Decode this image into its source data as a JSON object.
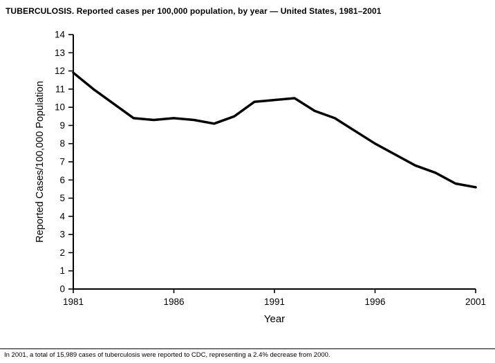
{
  "title": "TUBERCULOSIS. Reported cases per 100,000 population, by year — United States, 1981–2001",
  "footnote": "In 2001, a total of 15,989 cases of tuberculosis were reported to CDC, representing a 2.4% decrease from 2000.",
  "chart_data": {
    "type": "line",
    "title": "TUBERCULOSIS. Reported cases per 100,000 population, by year — United States, 1981–2001",
    "x": [
      1981,
      1982,
      1983,
      1984,
      1985,
      1986,
      1987,
      1988,
      1989,
      1990,
      1991,
      1992,
      1993,
      1994,
      1995,
      1996,
      1997,
      1998,
      1999,
      2000,
      2001
    ],
    "values": [
      11.9,
      11.0,
      10.2,
      9.4,
      9.3,
      9.4,
      9.3,
      9.1,
      9.5,
      10.3,
      10.4,
      10.5,
      9.8,
      9.4,
      8.7,
      8.0,
      7.4,
      6.8,
      6.4,
      5.8,
      5.6
    ],
    "xlabel": "Year",
    "ylabel": "Reported Cases/100,000 Population",
    "xlim": [
      1981,
      2001
    ],
    "ylim": [
      0,
      14
    ],
    "y_tick_step": 1,
    "x_ticks": [
      1981,
      1986,
      1991,
      1996,
      2001
    ],
    "grid": "off",
    "legend": "none",
    "line_color": "#000000",
    "axis_color": "#000000"
  }
}
